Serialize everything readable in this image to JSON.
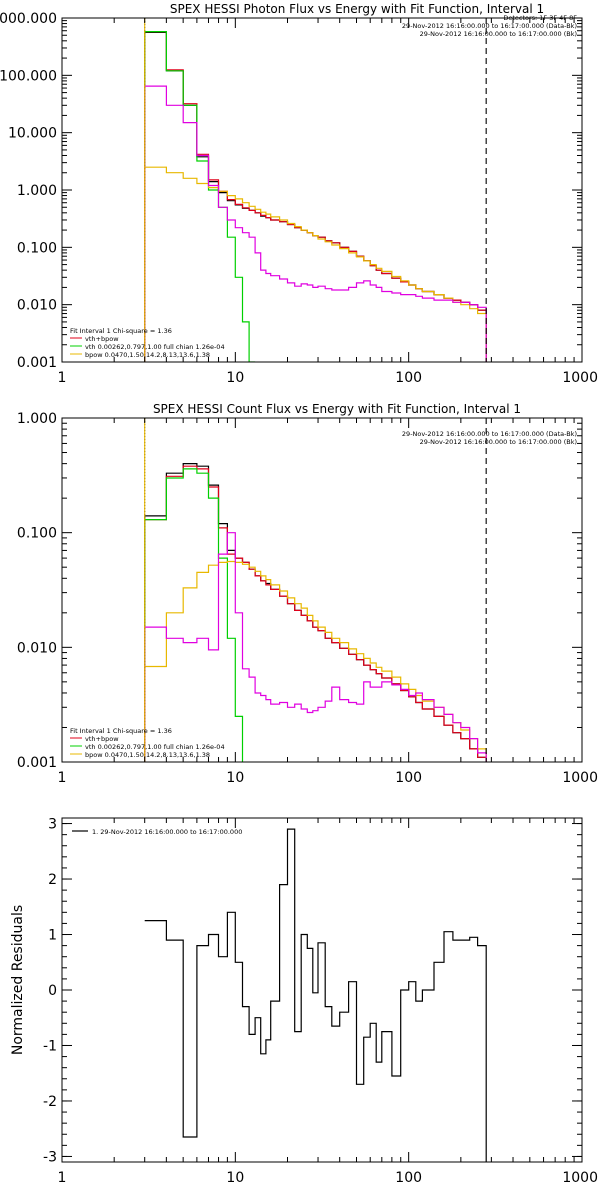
{
  "colors": {
    "data": "#000000",
    "total": "#e0001a",
    "vth": "#00d000",
    "bpow": "#e8b800",
    "bk": "#e000e0"
  },
  "chart_data": [
    {
      "type": "line",
      "title": "SPEX HESSI Photon Flux vs Energy with Fit Function, Interval 1",
      "xlabel": "",
      "ylabel": "",
      "xscale": "log",
      "yscale": "log",
      "xlim": [
        1,
        1000
      ],
      "ylim": [
        0.001,
        1000
      ],
      "xticks": [
        "1",
        "10",
        "100",
        "1000"
      ],
      "yticks": [
        "0.001",
        "0.010",
        "0.100",
        "1.000",
        "10.000",
        "100.000",
        "1000.000"
      ],
      "header_lines": [
        "Detectors: 1F 3F 4F 8F",
        "29-Nov-2012 16:16:00.000 to 16:17:00.000 (Data-Bk)",
        "29-Nov-2012 16:16:00.000 to 16:17:00.000 (Bk)"
      ],
      "legend_lines": [
        "Fit Interval 1    Chi-square = 1.36",
        "vth+bpow",
        "vth 0.00262,0.797,1.00  full chian 1.26e-04",
        "bpow 0.0470,1.50,14.2,8.13,13.6,1.38"
      ],
      "energy_edges": [
        3,
        4,
        5,
        6,
        7,
        8,
        9,
        10,
        11,
        12,
        13,
        14,
        15,
        16,
        18,
        20,
        22,
        24,
        26,
        28,
        30,
        33,
        36,
        40,
        45,
        50,
        55,
        60,
        65,
        70,
        80,
        90,
        100,
        110,
        120,
        140,
        160,
        180,
        200,
        225,
        250,
        280
      ],
      "series": [
        {
          "key": "data",
          "values": [
            560,
            120,
            30,
            3.8,
            1.4,
            0.9,
            0.65,
            0.55,
            0.48,
            0.44,
            0.4,
            0.35,
            0.33,
            0.3,
            0.28,
            0.25,
            0.22,
            0.2,
            0.18,
            0.16,
            0.15,
            0.13,
            0.12,
            0.1,
            0.085,
            0.07,
            0.058,
            0.048,
            0.04,
            0.035,
            0.029,
            0.025,
            0.022,
            0.019,
            0.017,
            0.015,
            0.013,
            0.012,
            0.011,
            0.01,
            0.008
          ]
        },
        {
          "key": "total",
          "values": [
            580,
            125,
            32,
            4.2,
            1.5,
            0.95,
            0.68,
            0.56,
            0.49,
            0.44,
            0.4,
            0.36,
            0.33,
            0.3,
            0.28,
            0.25,
            0.22,
            0.2,
            0.18,
            0.16,
            0.15,
            0.13,
            0.12,
            0.1,
            0.085,
            0.07,
            0.058,
            0.048,
            0.04,
            0.035,
            0.029,
            0.025,
            0.022,
            0.019,
            0.017,
            0.015,
            0.013,
            0.012,
            0.011,
            0.01,
            0.008
          ]
        },
        {
          "key": "vth",
          "values": [
            580,
            120,
            30,
            3.2,
            1.0,
            0.5,
            0.15,
            0.03,
            0.005,
            0.0009,
            null,
            null,
            null,
            null,
            null,
            null,
            null,
            null,
            null,
            null,
            null,
            null,
            null,
            null,
            null,
            null,
            null,
            null,
            null,
            null,
            null,
            null,
            null,
            null,
            null,
            null,
            null,
            null,
            null,
            null,
            null
          ]
        },
        {
          "key": "bpow",
          "values": [
            2.5,
            2.0,
            1.6,
            1.3,
            1.1,
            0.95,
            0.8,
            0.7,
            0.6,
            0.52,
            0.46,
            0.41,
            0.38,
            0.34,
            0.3,
            0.26,
            0.23,
            0.2,
            0.18,
            0.16,
            0.14,
            0.125,
            0.11,
            0.095,
            0.08,
            0.068,
            0.058,
            0.05,
            0.043,
            0.038,
            0.031,
            0.026,
            0.022,
            0.019,
            0.017,
            0.015,
            0.013,
            0.011,
            0.01,
            0.0085,
            0.007
          ]
        },
        {
          "key": "bk",
          "values": [
            65,
            30,
            15,
            4,
            1.2,
            0.5,
            0.3,
            0.22,
            0.18,
            0.15,
            0.08,
            0.04,
            0.035,
            0.032,
            0.028,
            0.024,
            0.021,
            0.023,
            0.022,
            0.02,
            0.021,
            0.019,
            0.018,
            0.018,
            0.02,
            0.024,
            0.026,
            0.022,
            0.02,
            0.017,
            0.016,
            0.015,
            0.015,
            0.014,
            0.013,
            0.012,
            0.012,
            0.011,
            0.011,
            0.01,
            0.009
          ]
        }
      ],
      "vlines": [
        {
          "x": 3,
          "style": "dotted",
          "color": "#000000"
        },
        {
          "x": 3,
          "style": "solid",
          "color": "#e8b800"
        },
        {
          "x": 280,
          "style": "dashed",
          "color": "#000000"
        }
      ]
    },
    {
      "type": "line",
      "title": "SPEX HESSI Count Flux vs Energy with Fit Function, Interval 1",
      "xlabel": "",
      "ylabel": "",
      "xscale": "log",
      "yscale": "log",
      "xlim": [
        1,
        1000
      ],
      "ylim": [
        0.001,
        1
      ],
      "xticks": [
        "1",
        "10",
        "100",
        "1000"
      ],
      "yticks": [
        "0.001",
        "0.010",
        "0.100",
        "1.000"
      ],
      "header_lines": [
        "29-Nov-2012 16:16:00.000 to 16:17:00.000 (Data-Bk)",
        "29-Nov-2012 16:16:00.000 to 16:17:00.000 (Bk)"
      ],
      "legend_lines": [
        "Fit Interval 1    Chi-square = 1.36",
        "vth+bpow",
        "vth 0.00262,0.797,1.00  full chian 1.26e-04",
        "bpow 0.0470,1.50,14.2,8.13,13.6,1.38"
      ],
      "energy_edges": [
        3,
        4,
        5,
        6,
        7,
        8,
        9,
        10,
        11,
        12,
        13,
        14,
        15,
        16,
        18,
        20,
        22,
        24,
        26,
        28,
        30,
        33,
        36,
        40,
        45,
        50,
        55,
        60,
        65,
        70,
        80,
        90,
        100,
        110,
        120,
        140,
        160,
        180,
        200,
        225,
        250,
        280
      ],
      "series": [
        {
          "key": "data",
          "values": [
            0.14,
            0.33,
            0.4,
            0.38,
            0.26,
            0.12,
            0.07,
            0.06,
            0.055,
            0.048,
            0.042,
            0.038,
            0.036,
            0.032,
            0.028,
            0.024,
            0.021,
            0.019,
            0.017,
            0.015,
            0.014,
            0.012,
            0.011,
            0.0098,
            0.0087,
            0.0078,
            0.007,
            0.0064,
            0.0059,
            0.0054,
            0.0048,
            0.0042,
            0.0037,
            0.0033,
            0.0029,
            0.0025,
            0.0021,
            0.0018,
            0.0016,
            0.0013,
            0.0011
          ]
        },
        {
          "key": "total",
          "values": [
            0.13,
            0.31,
            0.38,
            0.36,
            0.25,
            0.11,
            0.065,
            0.06,
            0.055,
            0.048,
            0.042,
            0.038,
            0.035,
            0.032,
            0.028,
            0.024,
            0.021,
            0.019,
            0.017,
            0.015,
            0.014,
            0.012,
            0.011,
            0.0098,
            0.0087,
            0.0078,
            0.007,
            0.0064,
            0.0059,
            0.0054,
            0.0048,
            0.0042,
            0.0037,
            0.0033,
            0.0029,
            0.0025,
            0.0021,
            0.0018,
            0.0016,
            0.0013,
            0.0011
          ]
        },
        {
          "key": "vth",
          "values": [
            0.13,
            0.3,
            0.36,
            0.33,
            0.2,
            0.06,
            0.012,
            0.0025,
            null,
            null,
            null,
            null,
            null,
            null,
            null,
            null,
            null,
            null,
            null,
            null,
            null,
            null,
            null,
            null,
            null,
            null,
            null,
            null,
            null,
            null,
            null,
            null,
            null,
            null,
            null,
            null,
            null,
            null,
            null,
            null,
            null
          ]
        },
        {
          "key": "bpow",
          "values": [
            0.0068,
            0.02,
            0.033,
            0.045,
            0.052,
            0.055,
            0.056,
            0.055,
            0.053,
            0.05,
            0.046,
            0.042,
            0.039,
            0.035,
            0.031,
            0.027,
            0.024,
            0.022,
            0.019,
            0.017,
            0.015,
            0.0135,
            0.012,
            0.011,
            0.0097,
            0.0088,
            0.008,
            0.0073,
            0.0067,
            0.0062,
            0.0055,
            0.0048,
            0.0043,
            0.0038,
            0.0034,
            0.003,
            0.0026,
            0.0022,
            0.0019,
            0.0016,
            0.0013
          ]
        },
        {
          "key": "bk",
          "values": [
            0.015,
            0.012,
            0.011,
            0.012,
            0.0095,
            0.065,
            0.1,
            0.02,
            0.0065,
            0.0055,
            0.004,
            0.0038,
            0.0035,
            0.0032,
            0.0033,
            0.003,
            0.0032,
            0.0029,
            0.0027,
            0.0028,
            0.003,
            0.0034,
            0.0045,
            0.0035,
            0.0033,
            0.0032,
            0.005,
            0.0045,
            0.0045,
            0.005,
            0.0047,
            0.0043,
            0.0038,
            0.004,
            0.0035,
            0.003,
            0.0026,
            0.0022,
            0.002,
            0.0016,
            0.0012
          ]
        }
      ],
      "vlines": [
        {
          "x": 3,
          "style": "dotted",
          "color": "#000000"
        },
        {
          "x": 3,
          "style": "solid",
          "color": "#e8b800"
        },
        {
          "x": 280,
          "style": "dashed",
          "color": "#000000"
        }
      ]
    },
    {
      "type": "line",
      "title": "",
      "xlabel": "",
      "ylabel": "Normalized Residuals",
      "xscale": "log",
      "yscale": "linear",
      "xlim": [
        1,
        1000
      ],
      "ylim": [
        -3.1,
        3.1
      ],
      "xticks": [
        "1",
        "10",
        "100",
        "1000"
      ],
      "yticks": [
        "-3",
        "-2",
        "-1",
        "0",
        "1",
        "2",
        "3"
      ],
      "legend_lines": [
        "1. 29-Nov-2012 16:16:00.000 to 16:17:00.000"
      ],
      "energy_edges": [
        3,
        4,
        5,
        6,
        7,
        8,
        9,
        10,
        11,
        12,
        13,
        14,
        15,
        16,
        18,
        20,
        22,
        24,
        26,
        28,
        30,
        33,
        36,
        40,
        45,
        50,
        55,
        60,
        65,
        70,
        80,
        90,
        100,
        110,
        120,
        140,
        160,
        180,
        200,
        225,
        250,
        280
      ],
      "series": [
        {
          "key": "data",
          "values": [
            1.25,
            0.9,
            -2.65,
            0.8,
            1.0,
            0.6,
            1.4,
            0.5,
            -0.3,
            -0.8,
            -0.5,
            -1.15,
            -0.9,
            -0.2,
            1.9,
            2.9,
            -0.75,
            1.0,
            0.75,
            -0.05,
            0.85,
            -0.3,
            -0.65,
            -0.4,
            0.15,
            -1.7,
            -0.85,
            -0.6,
            -1.3,
            -0.75,
            -1.55,
            0.0,
            0.15,
            -0.2,
            0.0,
            0.5,
            1.05,
            0.9,
            0.9,
            0.95,
            0.8
          ]
        }
      ],
      "vlines": []
    }
  ]
}
